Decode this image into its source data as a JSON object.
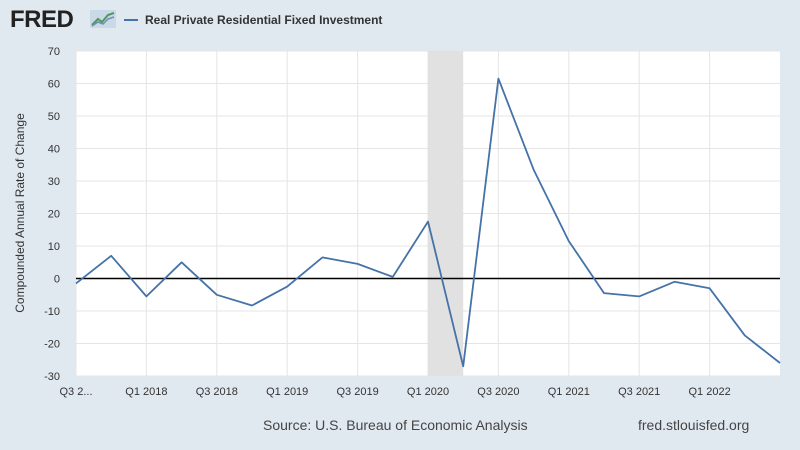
{
  "brand": {
    "logo_text": "FRED"
  },
  "source_text": "Source: U.S. Bureau of Economic Analysis",
  "site_text": "fred.stlouisfed.org",
  "colors": {
    "series": "#4572a7",
    "recession": "#e1e1e1",
    "background": "#e1e9f0",
    "plot": "#ffffff",
    "grid": "#e5e5e5"
  },
  "chart_data": {
    "type": "line",
    "title": "",
    "xlabel": "",
    "ylabel": "Compounded Annual Rate of Change",
    "ylim": [
      -30,
      70
    ],
    "yticks": [
      70,
      60,
      50,
      40,
      30,
      20,
      10,
      0,
      -10,
      -20,
      -30
    ],
    "xticks": [
      "Q1 2018",
      "Q3 2018",
      "Q1 2019",
      "Q3 2019",
      "Q1 2020",
      "Q3 2020",
      "Q1 2021",
      "Q3 2021",
      "Q1 2022",
      "Q3 2..."
    ],
    "x": [
      "Q3 2017",
      "Q4 2017",
      "Q1 2018",
      "Q2 2018",
      "Q3 2018",
      "Q4 2018",
      "Q1 2019",
      "Q2 2019",
      "Q3 2019",
      "Q4 2019",
      "Q1 2020",
      "Q2 2020",
      "Q3 2020",
      "Q4 2020",
      "Q1 2021",
      "Q2 2021",
      "Q3 2021",
      "Q4 2021",
      "Q1 2022",
      "Q2 2022",
      "Q3 2022"
    ],
    "series": [
      {
        "name": "Real Private Residential Fixed Investment",
        "values": [
          -1.5,
          7,
          -5.5,
          5,
          -5,
          -8.3,
          -2.5,
          6.5,
          4.5,
          0.5,
          17.5,
          -27,
          61.5,
          33.5,
          11.5,
          -4.5,
          -5.5,
          -1,
          -3,
          -17.5,
          -26
        ]
      }
    ],
    "recession": {
      "start": "Q1 2020",
      "end": "Q2 2020"
    },
    "grid": true,
    "zero_line": true,
    "legend": "top-left"
  }
}
